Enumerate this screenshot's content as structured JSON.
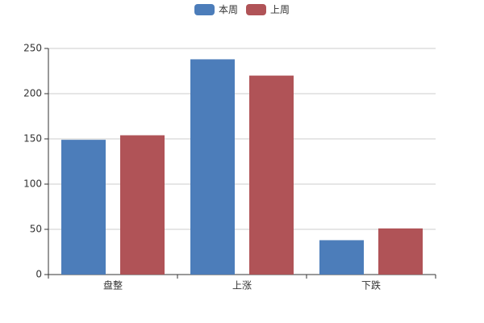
{
  "chart_data": {
    "type": "bar",
    "categories": [
      "盘整",
      "上涨",
      "下跌"
    ],
    "series": [
      {
        "name": "本周",
        "color": "#4c7dba",
        "values": [
          149,
          238,
          38
        ]
      },
      {
        "name": "上周",
        "color": "#b05357",
        "values": [
          154,
          220,
          51
        ]
      }
    ],
    "ylim": [
      0,
      250
    ],
    "yticks": [
      0,
      50,
      100,
      150,
      200,
      250
    ],
    "grid": true
  }
}
